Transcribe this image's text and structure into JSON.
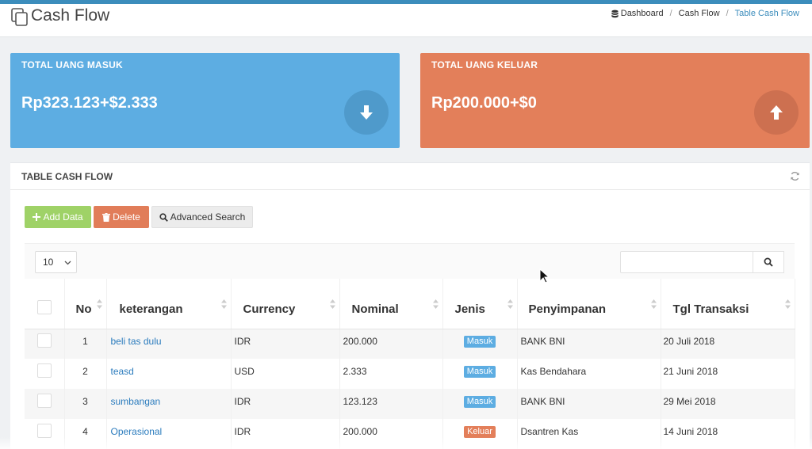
{
  "header": {
    "title": "Cash Flow",
    "breadcrumb": [
      "Dashboard",
      "Cash Flow",
      "Table Cash Flow"
    ]
  },
  "stats": {
    "in": {
      "label": "TOTAL UANG MASUK",
      "value": "Rp323.123+$2.333",
      "icon": "arrow-down-icon",
      "color": "#5dade2"
    },
    "out": {
      "label": "TOTAL UANG KELUAR",
      "value": "Rp200.000+$0",
      "icon": "arrow-up-icon",
      "color": "#e37f5a"
    }
  },
  "table_box": {
    "title": "TABLE CASH FLOW",
    "buttons": {
      "add": "Add Data",
      "delete": "Delete",
      "advanced": "Advanced Search"
    },
    "page_length": "10",
    "search": {
      "value": "",
      "placeholder": ""
    },
    "columns": [
      "No",
      "keterangan",
      "Currency",
      "Nominal",
      "Jenis",
      "Penyimpanan",
      "Tgl Transaksi"
    ],
    "rows": [
      {
        "no": "1",
        "keterangan": "beli tas dulu",
        "currency": "IDR",
        "nominal": "200.000",
        "jenis": "Masuk",
        "penyimpanan": "BANK BNI",
        "tgl": "20 Juli 2018"
      },
      {
        "no": "2",
        "keterangan": "teasd",
        "currency": "USD",
        "nominal": "2.333",
        "jenis": "Masuk",
        "penyimpanan": "Kas Bendahara",
        "tgl": "21 Juni 2018"
      },
      {
        "no": "3",
        "keterangan": "sumbangan",
        "currency": "IDR",
        "nominal": "123.123",
        "jenis": "Masuk",
        "penyimpanan": "BANK BNI",
        "tgl": "29 Mei 2018"
      },
      {
        "no": "4",
        "keterangan": "Operasional",
        "currency": "IDR",
        "nominal": "200.000",
        "jenis": "Keluar",
        "penyimpanan": "Dsantren Kas",
        "tgl": "14 Juni 2018"
      }
    ]
  },
  "colors": {
    "accent": "#3c8dbc",
    "success": "#9fd267",
    "danger": "#e17d59",
    "link": "#2a7bbd"
  }
}
